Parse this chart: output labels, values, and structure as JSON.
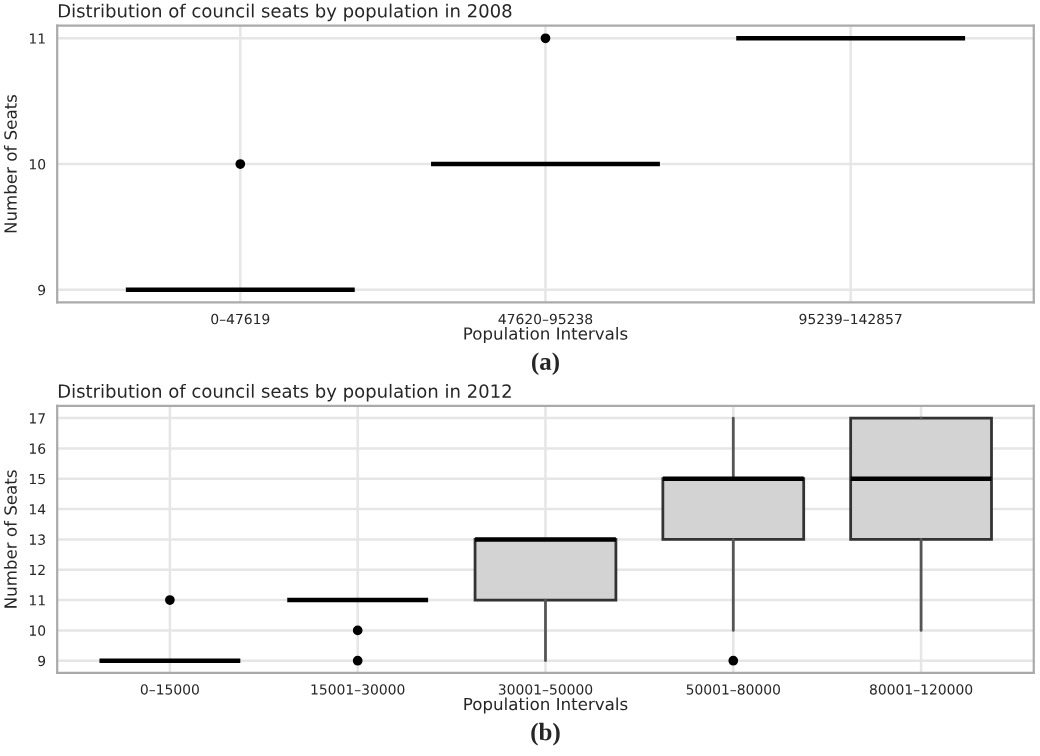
{
  "chart_data": [
    {
      "type": "box",
      "title": "Distribution of council seats by population in 2008",
      "xlabel": "Population Intervals",
      "ylabel": "Number of Seats",
      "annotations": [
        "(a)"
      ],
      "categories": [
        "0–47619",
        "47620–95238",
        "95239–142857"
      ],
      "boxes": [
        {
          "low": 9,
          "q1": 9,
          "median": 9,
          "q3": 9,
          "high": 9,
          "outliers": [
            10
          ]
        },
        {
          "low": 10,
          "q1": 10,
          "median": 10,
          "q3": 10,
          "high": 10,
          "outliers": [
            11
          ]
        },
        {
          "low": 11,
          "q1": 11,
          "median": 11,
          "q3": 11,
          "high": 11
        }
      ],
      "colors": [
        "#000000",
        "#000000",
        "#000000"
      ],
      "ylim": [
        8.9,
        11.1
      ],
      "yticks": [
        9,
        10,
        11
      ],
      "grid": true
    },
    {
      "type": "box",
      "title": "Distribution of council seats by population in 2012",
      "xlabel": "Population Intervals",
      "ylabel": "Number of Seats",
      "annotations": [
        "(b)"
      ],
      "categories": [
        "0–15000",
        "15001–30000",
        "30001–50000",
        "50001–80000",
        "80001–120000"
      ],
      "boxes": [
        {
          "low": 9,
          "q1": 9,
          "median": 9,
          "q3": 9,
          "high": 9,
          "outliers": [
            11
          ]
        },
        {
          "low": 11,
          "q1": 11,
          "median": 11,
          "q3": 11,
          "high": 11,
          "outliers": [
            10,
            9
          ]
        },
        {
          "low": 9,
          "q1": 11,
          "median": 13,
          "q3": 13,
          "high": 13
        },
        {
          "low": 10,
          "q1": 13,
          "median": 15,
          "q3": 15,
          "high": 17,
          "outliers": [
            9
          ]
        },
        {
          "low": 10,
          "q1": 13,
          "median": 15,
          "q3": 17,
          "high": 17
        }
      ],
      "colors": [
        "#000000",
        "#000000",
        "#d3d3d3",
        "#d3d3d3",
        "#d3d3d3"
      ],
      "ylim": [
        8.6,
        17.4
      ],
      "yticks": [
        9,
        10,
        11,
        12,
        13,
        14,
        15,
        16,
        17
      ],
      "grid": true
    }
  ]
}
